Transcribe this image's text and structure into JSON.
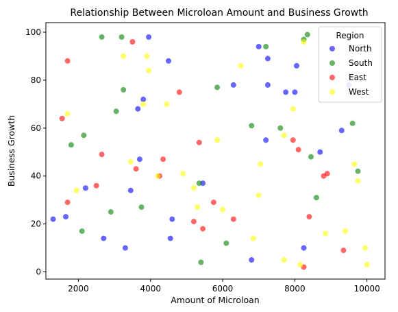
{
  "chart_data": {
    "type": "scatter",
    "title": "Relationship Between Microloan Amount and Business Growth",
    "xlabel": "Amount of Microloan",
    "ylabel": "Business Growth",
    "xlim": [
      1100,
      10500
    ],
    "ylim": [
      -3,
      104
    ],
    "xticks": [
      2000,
      4000,
      6000,
      8000,
      10000
    ],
    "yticks": [
      0,
      20,
      40,
      60,
      80,
      100
    ],
    "grid": false,
    "legend": {
      "title": "Region",
      "placement": "top-right"
    },
    "series": [
      {
        "name": "North",
        "color": "#0000ff",
        "points": [
          [
            1300,
            22
          ],
          [
            1650,
            23
          ],
          [
            2200,
            35
          ],
          [
            2700,
            14
          ],
          [
            3300,
            10
          ],
          [
            3450,
            34
          ],
          [
            3650,
            68
          ],
          [
            3700,
            47
          ],
          [
            3800,
            72
          ],
          [
            3950,
            98
          ],
          [
            4500,
            88
          ],
          [
            4550,
            14
          ],
          [
            4600,
            22
          ],
          [
            5450,
            37
          ],
          [
            6300,
            78
          ],
          [
            6800,
            5
          ],
          [
            7000,
            94
          ],
          [
            7200,
            55
          ],
          [
            7250,
            89
          ],
          [
            7250,
            78
          ],
          [
            7750,
            75
          ],
          [
            8000,
            75
          ],
          [
            8050,
            86
          ],
          [
            8250,
            10
          ],
          [
            8700,
            50
          ],
          [
            9300,
            59
          ],
          [
            9500,
            78
          ]
        ]
      },
      {
        "name": "South",
        "color": "#008000",
        "points": [
          [
            1800,
            53
          ],
          [
            2100,
            17
          ],
          [
            2150,
            57
          ],
          [
            2650,
            98
          ],
          [
            2900,
            25
          ],
          [
            3050,
            67
          ],
          [
            3200,
            98
          ],
          [
            3250,
            76
          ],
          [
            3750,
            27
          ],
          [
            5350,
            37
          ],
          [
            5400,
            4
          ],
          [
            5850,
            77
          ],
          [
            6100,
            12
          ],
          [
            6800,
            61
          ],
          [
            7200,
            94
          ],
          [
            7600,
            60
          ],
          [
            8250,
            97
          ],
          [
            8350,
            99
          ],
          [
            8450,
            48
          ],
          [
            8600,
            31
          ],
          [
            9600,
            62
          ],
          [
            9750,
            42
          ]
        ]
      },
      {
        "name": "East",
        "color": "#ff0000",
        "points": [
          [
            1550,
            64
          ],
          [
            1700,
            88
          ],
          [
            1700,
            29
          ],
          [
            2500,
            36
          ],
          [
            2650,
            49
          ],
          [
            3500,
            96
          ],
          [
            3600,
            43
          ],
          [
            4250,
            40
          ],
          [
            4350,
            47
          ],
          [
            4800,
            75
          ],
          [
            5200,
            21
          ],
          [
            5350,
            54
          ],
          [
            5450,
            18
          ],
          [
            5750,
            29
          ],
          [
            6300,
            22
          ],
          [
            7950,
            55
          ],
          [
            8100,
            51
          ],
          [
            8250,
            2
          ],
          [
            8400,
            23
          ],
          [
            8800,
            40
          ],
          [
            8900,
            41
          ],
          [
            9350,
            9
          ]
        ]
      },
      {
        "name": "West",
        "color": "#ffff00",
        "points": [
          [
            1700,
            66
          ],
          [
            1950,
            34
          ],
          [
            3250,
            90
          ],
          [
            3450,
            46
          ],
          [
            3800,
            70
          ],
          [
            3900,
            90
          ],
          [
            3950,
            84
          ],
          [
            4200,
            40
          ],
          [
            4450,
            70
          ],
          [
            4900,
            41
          ],
          [
            5200,
            35
          ],
          [
            5300,
            27
          ],
          [
            5850,
            55
          ],
          [
            6000,
            26
          ],
          [
            6500,
            86
          ],
          [
            6850,
            14
          ],
          [
            7000,
            32
          ],
          [
            7050,
            45
          ],
          [
            7700,
            57
          ],
          [
            7700,
            5
          ],
          [
            7950,
            68
          ],
          [
            8150,
            3
          ],
          [
            8250,
            96
          ],
          [
            8850,
            16
          ],
          [
            9400,
            17
          ],
          [
            9650,
            45
          ],
          [
            9750,
            38
          ],
          [
            9950,
            10
          ],
          [
            10000,
            3
          ]
        ]
      }
    ]
  }
}
